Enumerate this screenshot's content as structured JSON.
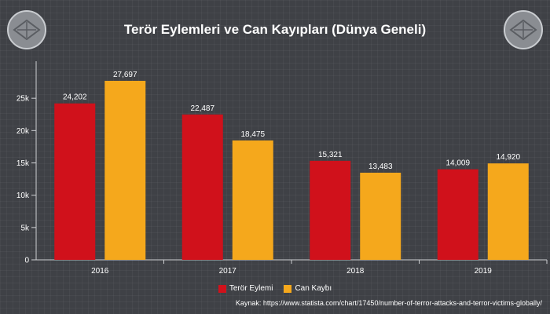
{
  "chart_data": {
    "type": "bar",
    "title": "Terör Eylemleri ve Can Kayıpları (Dünya Geneli)",
    "categories": [
      "2016",
      "2017",
      "2018",
      "2019"
    ],
    "series": [
      {
        "name": "Terör Eylemi",
        "color": "#d0111b",
        "values": [
          24202,
          22487,
          15321,
          14009
        ],
        "labels": [
          "24,202",
          "22,487",
          "15,321",
          "14,009"
        ]
      },
      {
        "name": "Can Kaybı",
        "color": "#f5a81c",
        "values": [
          27697,
          18475,
          13483,
          14920
        ],
        "labels": [
          "27,697",
          "18,475",
          "13,483",
          "14,920"
        ]
      }
    ],
    "y_ticks": [
      {
        "value": 0,
        "label": "0"
      },
      {
        "value": 5000,
        "label": "5k"
      },
      {
        "value": 10000,
        "label": "10k"
      },
      {
        "value": 15000,
        "label": "15k"
      },
      {
        "value": 20000,
        "label": "20k"
      },
      {
        "value": 25000,
        "label": "25k"
      }
    ],
    "ylim": [
      0,
      30000
    ],
    "legend_position": "bottom-center",
    "grid": false
  },
  "source": "Kaynak: https://www.statista.com/chart/17450/number-of-terror-attacks-and-terror-victims-globally/"
}
